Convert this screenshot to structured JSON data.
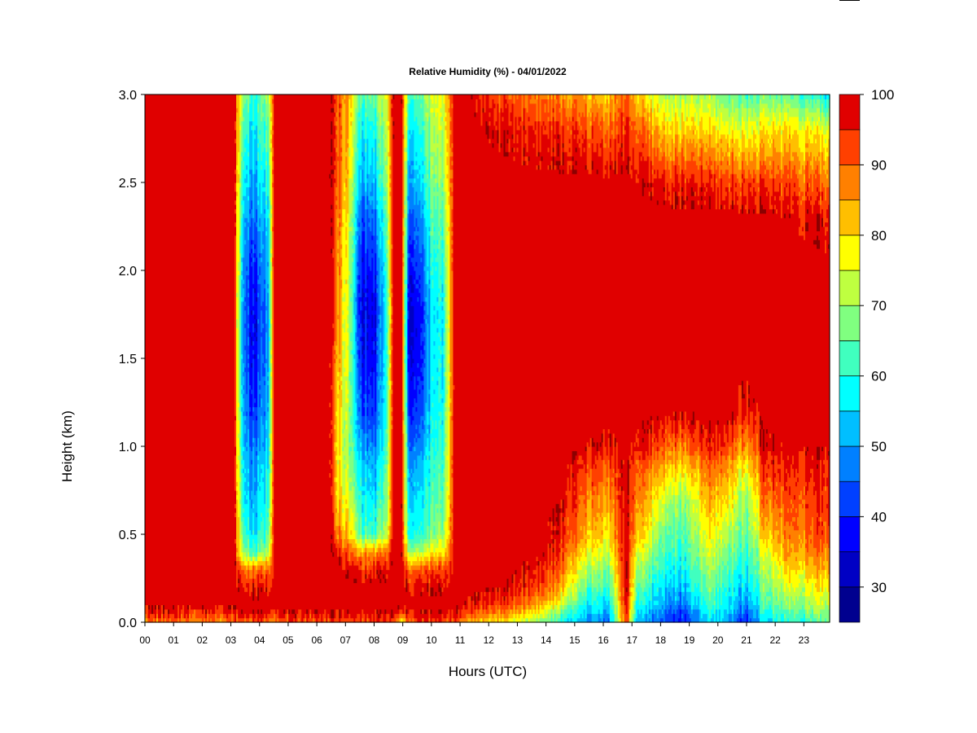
{
  "chart_data": {
    "type": "heatmap",
    "title": "Relative Humidity (%) - 04/01/2022",
    "xlabel": "Hours (UTC)",
    "ylabel": "Height (km)",
    "x_ticks": [
      "00",
      "01",
      "02",
      "03",
      "04",
      "05",
      "06",
      "07",
      "08",
      "09",
      "10",
      "11",
      "12",
      "13",
      "14",
      "15",
      "16",
      "17",
      "18",
      "19",
      "20",
      "21",
      "22",
      "23"
    ],
    "x_range": [
      0,
      23.9
    ],
    "y_ticks": [
      "0.0",
      "0.5",
      "1.0",
      "1.5",
      "2.0",
      "2.5",
      "3.0"
    ],
    "y_range": [
      0,
      3.0
    ],
    "colorbar": {
      "ticks": [
        "30",
        "40",
        "50",
        "60",
        "70",
        "80",
        "90",
        "100"
      ],
      "range": [
        25,
        100
      ],
      "levels": [
        25,
        30,
        35,
        40,
        45,
        50,
        55,
        60,
        65,
        70,
        75,
        80,
        85,
        90,
        95,
        100
      ],
      "colors": [
        "#00008f",
        "#0000c4",
        "#0000ff",
        "#0040ff",
        "#0080ff",
        "#00bfff",
        "#00ffff",
        "#40ffbf",
        "#80ff80",
        "#bfff40",
        "#ffff00",
        "#ffbf00",
        "#ff8000",
        "#ff4000",
        "#e00000",
        "#8b0000"
      ]
    },
    "profiles": {
      "heights_km": [
        0.0,
        0.05,
        0.1,
        0.2,
        0.3,
        0.4,
        0.5,
        0.7,
        0.9,
        1.0,
        1.2,
        1.5,
        1.8,
        2.0,
        2.3,
        2.5,
        2.8,
        3.0
      ],
      "keyframes": [
        {
          "hour": 0.0,
          "rh": [
            88,
            95,
            99,
            99,
            99,
            99,
            99,
            99,
            99,
            99,
            99,
            99,
            99,
            99,
            99,
            99,
            99,
            99
          ]
        },
        {
          "hour": 3.1,
          "rh": [
            88,
            94,
            99,
            99,
            99,
            99,
            99,
            99,
            99,
            99,
            99,
            99,
            99,
            99,
            99,
            99,
            99,
            99
          ]
        },
        {
          "hour": 3.4,
          "rh": [
            92,
            97,
            99,
            97,
            90,
            70,
            65,
            60,
            57,
            55,
            52,
            50,
            50,
            52,
            55,
            60,
            65,
            70
          ]
        },
        {
          "hour": 3.8,
          "rh": [
            92,
            97,
            99,
            96,
            88,
            62,
            55,
            50,
            48,
            45,
            40,
            36,
            35,
            38,
            45,
            50,
            55,
            60
          ]
        },
        {
          "hour": 4.3,
          "rh": [
            92,
            97,
            99,
            97,
            90,
            70,
            65,
            60,
            57,
            55,
            52,
            50,
            50,
            52,
            55,
            60,
            65,
            70
          ]
        },
        {
          "hour": 4.5,
          "rh": [
            90,
            96,
            99,
            99,
            99,
            99,
            99,
            99,
            99,
            99,
            99,
            99,
            99,
            99,
            99,
            99,
            99,
            99
          ]
        },
        {
          "hour": 6.4,
          "rh": [
            92,
            97,
            99,
            99,
            99,
            99,
            99,
            99,
            99,
            99,
            99,
            99,
            99,
            99,
            99,
            99,
            99,
            99
          ]
        },
        {
          "hour": 6.7,
          "rh": [
            92,
            97,
            99,
            99,
            99,
            97,
            88,
            82,
            80,
            80,
            82,
            85,
            88,
            88,
            90,
            92,
            92,
            92
          ]
        },
        {
          "hour": 7.1,
          "rh": [
            92,
            97,
            99,
            99,
            97,
            90,
            82,
            75,
            70,
            68,
            70,
            72,
            72,
            74,
            76,
            80,
            82,
            85
          ]
        },
        {
          "hour": 7.5,
          "rh": [
            92,
            97,
            99,
            99,
            95,
            85,
            65,
            60,
            56,
            52,
            45,
            40,
            38,
            40,
            45,
            52,
            58,
            65
          ]
        },
        {
          "hour": 8.0,
          "rh": [
            92,
            97,
            99,
            99,
            95,
            85,
            62,
            55,
            50,
            46,
            40,
            36,
            35,
            38,
            45,
            52,
            58,
            65
          ]
        },
        {
          "hour": 8.4,
          "rh": [
            92,
            97,
            99,
            99,
            96,
            88,
            70,
            65,
            62,
            60,
            58,
            56,
            55,
            58,
            62,
            66,
            70,
            74
          ]
        },
        {
          "hour": 8.7,
          "rh": [
            92,
            97,
            99,
            99,
            99,
            99,
            99,
            99,
            99,
            99,
            99,
            99,
            99,
            99,
            99,
            99,
            99,
            99
          ]
        },
        {
          "hour": 8.95,
          "rh": [
            70,
            90,
            99,
            99,
            99,
            99,
            99,
            99,
            99,
            99,
            99,
            99,
            99,
            99,
            99,
            99,
            99,
            99
          ]
        },
        {
          "hour": 9.2,
          "rh": [
            92,
            97,
            99,
            97,
            90,
            72,
            60,
            56,
            52,
            48,
            42,
            38,
            36,
            40,
            46,
            52,
            58,
            64
          ]
        },
        {
          "hour": 9.6,
          "rh": [
            92,
            97,
            99,
            96,
            90,
            70,
            58,
            54,
            50,
            46,
            40,
            36,
            36,
            40,
            46,
            52,
            58,
            64
          ]
        },
        {
          "hour": 10.0,
          "rh": [
            92,
            97,
            99,
            97,
            92,
            78,
            66,
            62,
            60,
            58,
            56,
            55,
            55,
            58,
            62,
            66,
            70,
            74
          ]
        },
        {
          "hour": 10.4,
          "rh": [
            92,
            97,
            99,
            97,
            92,
            78,
            68,
            64,
            62,
            60,
            58,
            57,
            57,
            60,
            64,
            68,
            72,
            76
          ]
        },
        {
          "hour": 10.8,
          "rh": [
            92,
            97,
            99,
            99,
            99,
            99,
            99,
            99,
            99,
            99,
            99,
            99,
            99,
            99,
            99,
            99,
            99,
            99
          ]
        },
        {
          "hour": 11.2,
          "rh": [
            85,
            92,
            97,
            99,
            99,
            99,
            99,
            99,
            99,
            99,
            99,
            99,
            99,
            99,
            99,
            99,
            99,
            99
          ]
        },
        {
          "hour": 12.5,
          "rh": [
            78,
            86,
            93,
            98,
            99,
            99,
            99,
            99,
            99,
            99,
            99,
            99,
            99,
            99,
            99,
            99,
            97,
            92
          ]
        },
        {
          "hour": 13.8,
          "rh": [
            68,
            76,
            85,
            93,
            96,
            99,
            99,
            99,
            99,
            99,
            99,
            99,
            99,
            99,
            99,
            99,
            95,
            88
          ]
        },
        {
          "hour": 14.6,
          "rh": [
            58,
            64,
            72,
            82,
            88,
            92,
            95,
            98,
            99,
            99,
            99,
            99,
            99,
            99,
            99,
            99,
            94,
            86
          ]
        },
        {
          "hour": 15.3,
          "rh": [
            50,
            54,
            58,
            65,
            72,
            78,
            84,
            88,
            94,
            98,
            99,
            99,
            99,
            99,
            99,
            99,
            92,
            84
          ]
        },
        {
          "hour": 16.2,
          "rh": [
            48,
            52,
            56,
            62,
            68,
            74,
            80,
            86,
            92,
            97,
            99,
            99,
            99,
            99,
            99,
            99,
            90,
            82
          ]
        },
        {
          "hour": 16.8,
          "rh": [
            92,
            95,
            97,
            99,
            99,
            99,
            99,
            99,
            99,
            99,
            99,
            99,
            99,
            99,
            99,
            99,
            95,
            92
          ]
        },
        {
          "hour": 17.2,
          "rh": [
            50,
            54,
            58,
            64,
            70,
            76,
            82,
            88,
            92,
            96,
            99,
            99,
            99,
            99,
            99,
            98,
            90,
            80
          ]
        },
        {
          "hour": 18.0,
          "rh": [
            45,
            48,
            52,
            56,
            60,
            64,
            68,
            76,
            86,
            92,
            99,
            99,
            99,
            99,
            99,
            96,
            82,
            72
          ]
        },
        {
          "hour": 18.8,
          "rh": [
            36,
            40,
            46,
            52,
            56,
            60,
            62,
            68,
            80,
            88,
            98,
            99,
            99,
            99,
            99,
            95,
            80,
            70
          ]
        },
        {
          "hour": 19.7,
          "rh": [
            55,
            58,
            62,
            66,
            70,
            74,
            78,
            84,
            90,
            95,
            99,
            99,
            99,
            99,
            99,
            95,
            80,
            70
          ]
        },
        {
          "hour": 20.3,
          "rh": [
            52,
            55,
            58,
            60,
            64,
            68,
            72,
            80,
            88,
            94,
            99,
            99,
            99,
            99,
            99,
            94,
            78,
            66
          ]
        },
        {
          "hour": 21.0,
          "rh": [
            38,
            42,
            48,
            54,
            58,
            62,
            65,
            68,
            78,
            86,
            96,
            99,
            99,
            99,
            99,
            93,
            76,
            64
          ]
        },
        {
          "hour": 21.6,
          "rh": [
            55,
            58,
            62,
            66,
            70,
            74,
            80,
            88,
            94,
            97,
            99,
            99,
            99,
            99,
            99,
            93,
            78,
            65
          ]
        },
        {
          "hour": 22.4,
          "rh": [
            60,
            64,
            68,
            74,
            80,
            85,
            88,
            92,
            96,
            98,
            99,
            99,
            99,
            99,
            98,
            93,
            80,
            66
          ]
        },
        {
          "hour": 23.3,
          "rh": [
            62,
            66,
            70,
            76,
            82,
            86,
            90,
            93,
            96,
            98,
            99,
            99,
            99,
            99,
            97,
            90,
            78,
            60
          ]
        },
        {
          "hour": 23.9,
          "rh": [
            66,
            68,
            72,
            78,
            84,
            88,
            92,
            94,
            96,
            98,
            99,
            99,
            99,
            99,
            96,
            88,
            75,
            55
          ]
        }
      ]
    }
  }
}
